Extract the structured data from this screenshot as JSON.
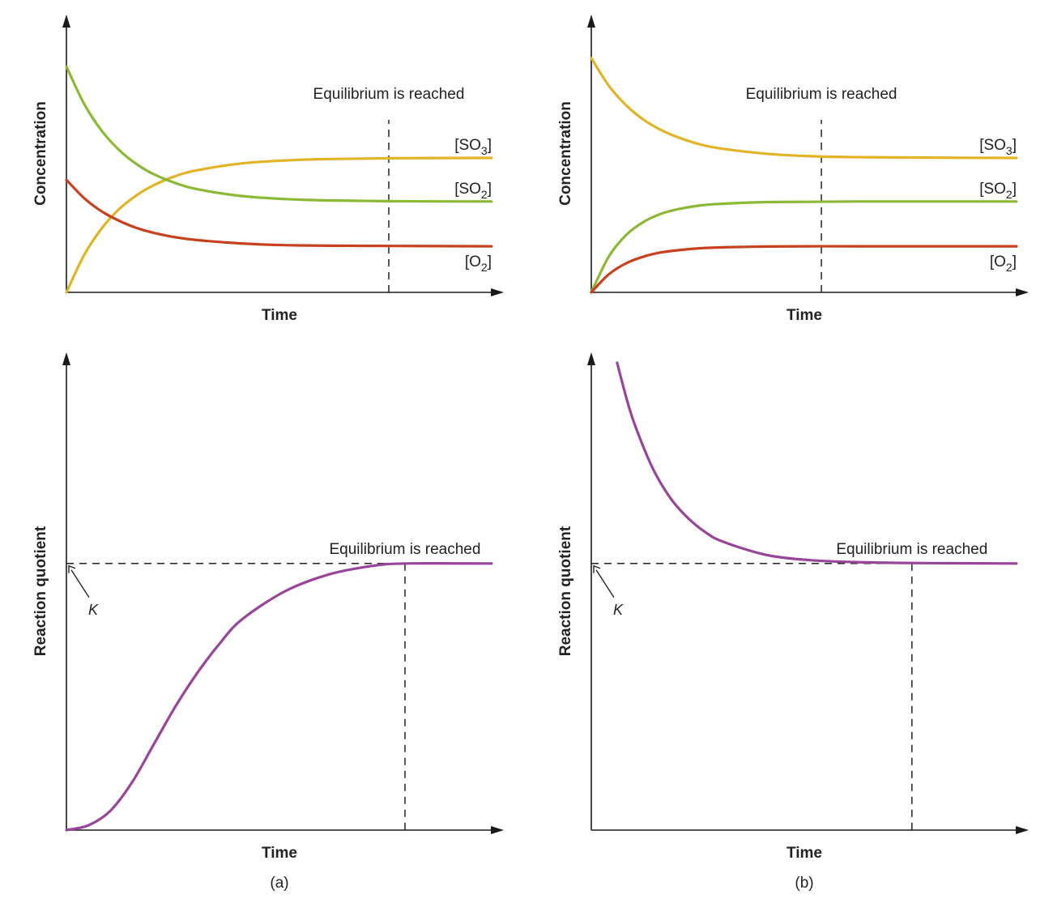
{
  "colors": {
    "SO3": "#e2b325",
    "SO2": "#8cb935",
    "O2": "#c7411f",
    "Q": "#98449b",
    "axis": "#1a1a1a"
  },
  "chart_data": [
    {
      "type": "line",
      "panel": "a",
      "xlabel": "Time",
      "ylabel": "Concentration",
      "xlim": [
        0,
        100
      ],
      "ylim": [
        0,
        100
      ],
      "grid": false,
      "legend": "inline-right",
      "annotation": "Equilibrium is reached",
      "equilibrium_x": 73.7,
      "x": [
        0,
        4,
        8,
        12,
        16,
        20,
        25,
        30,
        40,
        50,
        60,
        75,
        97.2
      ],
      "series": [
        {
          "name": "[SO3]",
          "label_main": "[SO",
          "label_sub": "3",
          "label_end": "]",
          "color_key": "SO3",
          "values": [
            0,
            13.3,
            22.9,
            29.9,
            34.9,
            38.6,
            41.9,
            44.0,
            46.4,
            47.5,
            48.0,
            48.3,
            48.4
          ]
        },
        {
          "name": "[SO2]",
          "label_main": "[SO",
          "label_sub": "2",
          "label_end": "]",
          "color_key": "SO2",
          "values": [
            81.3,
            68.0,
            58.3,
            51.3,
            46.2,
            42.5,
            39.3,
            37.1,
            34.7,
            33.6,
            33.1,
            32.8,
            32.7
          ]
        },
        {
          "name": "[O2]",
          "label_main": "[O",
          "label_sub": "2",
          "label_end": "]",
          "color_key": "O2",
          "values": [
            40.5,
            34.0,
            29.2,
            25.8,
            23.2,
            21.4,
            19.8,
            18.8,
            17.6,
            17.0,
            16.8,
            16.7,
            16.6
          ]
        }
      ]
    },
    {
      "type": "line",
      "panel": "b",
      "xlabel": "Time",
      "ylabel": "Concentration",
      "xlim": [
        0,
        100
      ],
      "ylim": [
        0,
        100
      ],
      "grid": false,
      "legend": "inline-right",
      "annotation": "Equilibrium is reached",
      "equilibrium_x": 52.6,
      "x": [
        0,
        4,
        8,
        12,
        16,
        20,
        25,
        30,
        40,
        50,
        60,
        75,
        97.2
      ],
      "series": [
        {
          "name": "[SO3]",
          "label_main": "[SO",
          "label_sub": "3",
          "label_end": "]",
          "color_key": "SO3",
          "values": [
            84.3,
            74.4,
            67.3,
            62.1,
            58.4,
            55.7,
            53.2,
            51.7,
            49.9,
            49.0,
            48.7,
            48.5,
            48.4
          ]
        },
        {
          "name": "[SO2]",
          "label_main": "[SO",
          "label_sub": "2",
          "label_end": "]",
          "color_key": "SO2",
          "values": [
            0,
            12.9,
            20.7,
            25.4,
            28.3,
            30.0,
            31.3,
            31.9,
            32.5,
            32.6,
            32.7,
            32.7,
            32.7
          ]
        },
        {
          "name": "[O2]",
          "label_main": "[O",
          "label_sub": "2",
          "label_end": "]",
          "color_key": "O2",
          "values": [
            0,
            6.5,
            10.5,
            12.9,
            14.4,
            15.2,
            15.9,
            16.2,
            16.5,
            16.6,
            16.6,
            16.6,
            16.6
          ]
        }
      ]
    },
    {
      "type": "line",
      "panel": "a",
      "xlabel": "Time",
      "ylabel": "Reaction quotient",
      "xlim": [
        0,
        100
      ],
      "ylim": [
        0,
        100
      ],
      "grid": false,
      "annotation": "Equilibrium is reached",
      "equilibrium_x": 77.4,
      "k_label": "K",
      "k_value": 55.8,
      "x": [
        0,
        5,
        10,
        15,
        20,
        25,
        30,
        35,
        40,
        50,
        60,
        70,
        77.4,
        97.2
      ],
      "series": [
        {
          "color_key": "Q",
          "values": [
            0,
            1,
            4,
            10,
            18,
            26,
            33,
            39,
            44,
            50,
            53.5,
            55.3,
            55.8,
            55.8
          ]
        }
      ]
    },
    {
      "type": "line",
      "panel": "b",
      "xlabel": "Time",
      "ylabel": "Reaction quotient",
      "xlim": [
        0,
        100
      ],
      "ylim": [
        0,
        100
      ],
      "grid": false,
      "annotation": "Equilibrium is reached",
      "equilibrium_x": 73.3,
      "k_label": "K",
      "k_value": 55.8,
      "x": [
        5.9,
        8,
        10,
        14,
        18,
        22,
        26,
        30,
        40,
        50,
        60,
        73.3,
        97.2
      ],
      "series": [
        {
          "color_key": "Q",
          "values": [
            97.8,
            90.5,
            84.7,
            75.8,
            69.6,
            65.4,
            62.4,
            60.4,
            57.6,
            56.5,
            56.1,
            55.9,
            55.8
          ]
        }
      ]
    }
  ],
  "captions": {
    "a": "(a)",
    "b": "(b)"
  }
}
